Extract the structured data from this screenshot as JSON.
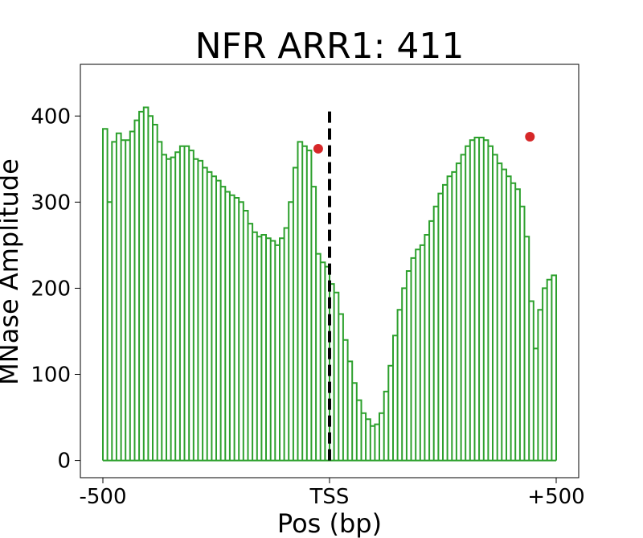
{
  "chart_data": {
    "type": "line",
    "title": "NFR ARR1: 411",
    "xlabel": "Pos (bp)",
    "ylabel": "MNase Amplitude",
    "xlim": [
      -500,
      500
    ],
    "ylim": [
      -20,
      460
    ],
    "x_ticks": [
      {
        "value": -500,
        "label": "-500"
      },
      {
        "value": 0,
        "label": "TSS"
      },
      {
        "value": 500,
        "label": "+500"
      }
    ],
    "y_ticks": [
      {
        "value": 0,
        "label": "0"
      },
      {
        "value": 100,
        "label": "100"
      },
      {
        "value": 200,
        "label": "200"
      },
      {
        "value": 300,
        "label": "300"
      },
      {
        "value": 400,
        "label": "400"
      }
    ],
    "grid": false,
    "legend": "none",
    "series": [
      {
        "color": "#2ca02c",
        "style": "solid-with-dropouts-to-zero",
        "x": [
          -500,
          -490,
          -480,
          -470,
          -460,
          -450,
          -440,
          -430,
          -420,
          -410,
          -400,
          -390,
          -380,
          -370,
          -360,
          -350,
          -340,
          -330,
          -320,
          -310,
          -300,
          -290,
          -280,
          -270,
          -260,
          -250,
          -240,
          -230,
          -220,
          -210,
          -200,
          -190,
          -180,
          -170,
          -160,
          -150,
          -140,
          -130,
          -120,
          -110,
          -100,
          -90,
          -80,
          -70,
          -60,
          -50,
          -40,
          -30,
          -20,
          -10,
          0,
          10,
          20,
          30,
          40,
          50,
          60,
          70,
          80,
          90,
          100,
          110,
          120,
          130,
          140,
          150,
          160,
          170,
          180,
          190,
          200,
          210,
          220,
          230,
          240,
          250,
          260,
          270,
          280,
          290,
          300,
          310,
          320,
          330,
          340,
          350,
          360,
          370,
          380,
          390,
          400,
          410,
          420,
          430,
          440,
          450,
          460,
          470,
          480,
          490,
          500
        ],
        "values": [
          385,
          300,
          370,
          380,
          372,
          372,
          382,
          395,
          405,
          410,
          400,
          390,
          370,
          355,
          350,
          352,
          358,
          365,
          365,
          360,
          350,
          348,
          340,
          335,
          330,
          325,
          318,
          312,
          308,
          305,
          300,
          290,
          275,
          265,
          260,
          262,
          258,
          255,
          250,
          258,
          270,
          300,
          340,
          370,
          365,
          360,
          318,
          240,
          230,
          225,
          205,
          195,
          170,
          140,
          115,
          90,
          70,
          55,
          48,
          40,
          42,
          55,
          80,
          110,
          145,
          175,
          200,
          220,
          235,
          245,
          250,
          262,
          278,
          295,
          310,
          320,
          330,
          335,
          345,
          355,
          365,
          372,
          375,
          375,
          372,
          365,
          355,
          345,
          338,
          330,
          322,
          315,
          295,
          260,
          185,
          130,
          175,
          200,
          210,
          215,
          130
        ],
        "dropout_mode": "spikes"
      }
    ],
    "markers": [
      {
        "x": -25,
        "y": 362,
        "color": "#d62728"
      },
      {
        "x": 442,
        "y": 376,
        "color": "#d62728"
      }
    ],
    "annotations": [
      {
        "type": "vertical-dashed-line",
        "x": 0,
        "y_from": 0,
        "y_to": 410,
        "color": "#000000"
      }
    ]
  }
}
